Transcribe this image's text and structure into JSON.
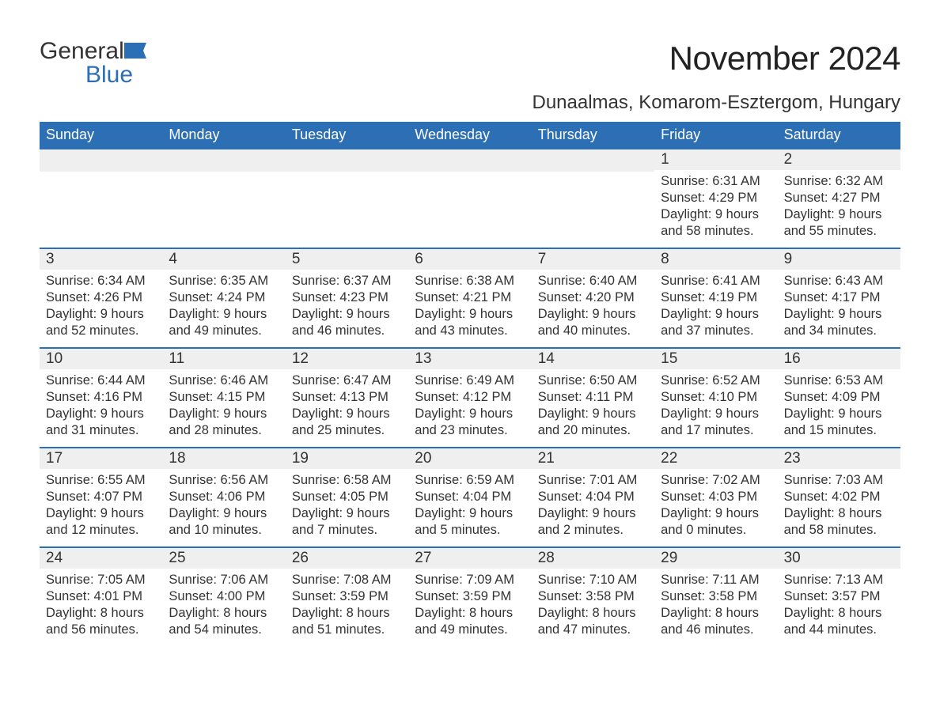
{
  "brand": {
    "part1": "General",
    "part2": "Blue"
  },
  "title": "November 2024",
  "location": "Dunaalmas, Komarom-Esztergom, Hungary",
  "colors": {
    "accent": "#2d6fb4",
    "header_text": "#ffffff",
    "daynum_bg": "#efefef",
    "text": "#333333",
    "background": "#ffffff"
  },
  "layout": {
    "columns": 7,
    "rows": 5,
    "first_day_column_index": 5,
    "last_day_number": 30
  },
  "weekdays": [
    "Sunday",
    "Monday",
    "Tuesday",
    "Wednesday",
    "Thursday",
    "Friday",
    "Saturday"
  ],
  "labels": {
    "sunrise": "Sunrise",
    "sunset": "Sunset",
    "daylight": "Daylight"
  },
  "days": [
    {
      "n": 1,
      "sunrise": "6:31 AM",
      "sunset": "4:29 PM",
      "daylight": "9 hours and 58 minutes."
    },
    {
      "n": 2,
      "sunrise": "6:32 AM",
      "sunset": "4:27 PM",
      "daylight": "9 hours and 55 minutes."
    },
    {
      "n": 3,
      "sunrise": "6:34 AM",
      "sunset": "4:26 PM",
      "daylight": "9 hours and 52 minutes."
    },
    {
      "n": 4,
      "sunrise": "6:35 AM",
      "sunset": "4:24 PM",
      "daylight": "9 hours and 49 minutes."
    },
    {
      "n": 5,
      "sunrise": "6:37 AM",
      "sunset": "4:23 PM",
      "daylight": "9 hours and 46 minutes."
    },
    {
      "n": 6,
      "sunrise": "6:38 AM",
      "sunset": "4:21 PM",
      "daylight": "9 hours and 43 minutes."
    },
    {
      "n": 7,
      "sunrise": "6:40 AM",
      "sunset": "4:20 PM",
      "daylight": "9 hours and 40 minutes."
    },
    {
      "n": 8,
      "sunrise": "6:41 AM",
      "sunset": "4:19 PM",
      "daylight": "9 hours and 37 minutes."
    },
    {
      "n": 9,
      "sunrise": "6:43 AM",
      "sunset": "4:17 PM",
      "daylight": "9 hours and 34 minutes."
    },
    {
      "n": 10,
      "sunrise": "6:44 AM",
      "sunset": "4:16 PM",
      "daylight": "9 hours and 31 minutes."
    },
    {
      "n": 11,
      "sunrise": "6:46 AM",
      "sunset": "4:15 PM",
      "daylight": "9 hours and 28 minutes."
    },
    {
      "n": 12,
      "sunrise": "6:47 AM",
      "sunset": "4:13 PM",
      "daylight": "9 hours and 25 minutes."
    },
    {
      "n": 13,
      "sunrise": "6:49 AM",
      "sunset": "4:12 PM",
      "daylight": "9 hours and 23 minutes."
    },
    {
      "n": 14,
      "sunrise": "6:50 AM",
      "sunset": "4:11 PM",
      "daylight": "9 hours and 20 minutes."
    },
    {
      "n": 15,
      "sunrise": "6:52 AM",
      "sunset": "4:10 PM",
      "daylight": "9 hours and 17 minutes."
    },
    {
      "n": 16,
      "sunrise": "6:53 AM",
      "sunset": "4:09 PM",
      "daylight": "9 hours and 15 minutes."
    },
    {
      "n": 17,
      "sunrise": "6:55 AM",
      "sunset": "4:07 PM",
      "daylight": "9 hours and 12 minutes."
    },
    {
      "n": 18,
      "sunrise": "6:56 AM",
      "sunset": "4:06 PM",
      "daylight": "9 hours and 10 minutes."
    },
    {
      "n": 19,
      "sunrise": "6:58 AM",
      "sunset": "4:05 PM",
      "daylight": "9 hours and 7 minutes."
    },
    {
      "n": 20,
      "sunrise": "6:59 AM",
      "sunset": "4:04 PM",
      "daylight": "9 hours and 5 minutes."
    },
    {
      "n": 21,
      "sunrise": "7:01 AM",
      "sunset": "4:04 PM",
      "daylight": "9 hours and 2 minutes."
    },
    {
      "n": 22,
      "sunrise": "7:02 AM",
      "sunset": "4:03 PM",
      "daylight": "9 hours and 0 minutes."
    },
    {
      "n": 23,
      "sunrise": "7:03 AM",
      "sunset": "4:02 PM",
      "daylight": "8 hours and 58 minutes."
    },
    {
      "n": 24,
      "sunrise": "7:05 AM",
      "sunset": "4:01 PM",
      "daylight": "8 hours and 56 minutes."
    },
    {
      "n": 25,
      "sunrise": "7:06 AM",
      "sunset": "4:00 PM",
      "daylight": "8 hours and 54 minutes."
    },
    {
      "n": 26,
      "sunrise": "7:08 AM",
      "sunset": "3:59 PM",
      "daylight": "8 hours and 51 minutes."
    },
    {
      "n": 27,
      "sunrise": "7:09 AM",
      "sunset": "3:59 PM",
      "daylight": "8 hours and 49 minutes."
    },
    {
      "n": 28,
      "sunrise": "7:10 AM",
      "sunset": "3:58 PM",
      "daylight": "8 hours and 47 minutes."
    },
    {
      "n": 29,
      "sunrise": "7:11 AM",
      "sunset": "3:58 PM",
      "daylight": "8 hours and 46 minutes."
    },
    {
      "n": 30,
      "sunrise": "7:13 AM",
      "sunset": "3:57 PM",
      "daylight": "8 hours and 44 minutes."
    }
  ]
}
